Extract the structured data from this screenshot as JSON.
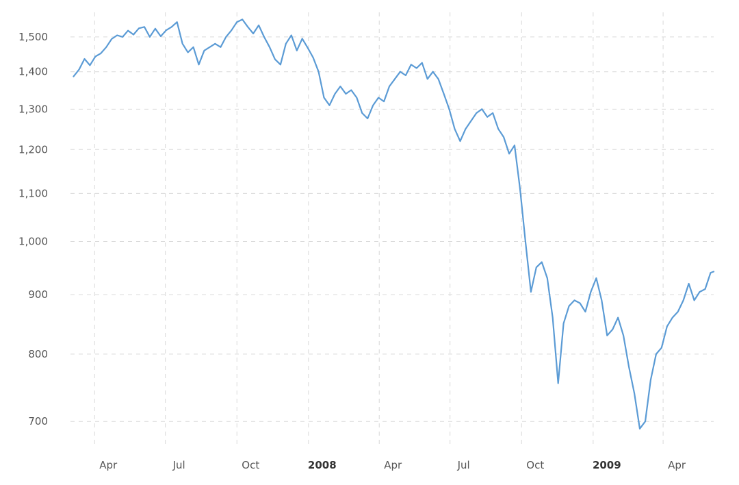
{
  "chart_data": {
    "type": "line",
    "title": "",
    "xlabel": "",
    "ylabel": "",
    "y_scale": "log",
    "ylim": [
      665,
      1575
    ],
    "xlim": [
      "2007-03-01",
      "2009-06-05"
    ],
    "grid": true,
    "legend": "none",
    "line_color": "#5b9bd5",
    "y_ticks": [
      {
        "value": 700,
        "label": "700"
      },
      {
        "value": 800,
        "label": "800"
      },
      {
        "value": 900,
        "label": "900"
      },
      {
        "value": 1000,
        "label": "1,000"
      },
      {
        "value": 1100,
        "label": "1,100"
      },
      {
        "value": 1200,
        "label": "1,200"
      },
      {
        "value": 1300,
        "label": "1,300"
      },
      {
        "value": 1400,
        "label": "1,400"
      },
      {
        "value": 1500,
        "label": "1,500"
      }
    ],
    "x_ticks": [
      {
        "date": "2007-04-01",
        "label": "Apr",
        "bold": false
      },
      {
        "date": "2007-07-01",
        "label": "Jul",
        "bold": false
      },
      {
        "date": "2007-10-01",
        "label": "Oct",
        "bold": false
      },
      {
        "date": "2008-01-01",
        "label": "2008",
        "bold": true
      },
      {
        "date": "2008-04-01",
        "label": "Apr",
        "bold": false
      },
      {
        "date": "2008-07-01",
        "label": "Jul",
        "bold": false
      },
      {
        "date": "2008-10-01",
        "label": "Oct",
        "bold": false
      },
      {
        "date": "2009-01-01",
        "label": "2009",
        "bold": true
      },
      {
        "date": "2009-04-01",
        "label": "Apr",
        "bold": false
      }
    ],
    "series": [
      {
        "points": [
          [
            "2007-03-05",
            1387
          ],
          [
            "2007-03-12",
            1406
          ],
          [
            "2007-03-19",
            1436
          ],
          [
            "2007-03-26",
            1418
          ],
          [
            "2007-04-02",
            1443
          ],
          [
            "2007-04-09",
            1452
          ],
          [
            "2007-04-16",
            1470
          ],
          [
            "2007-04-23",
            1494
          ],
          [
            "2007-04-30",
            1505
          ],
          [
            "2007-05-07",
            1500
          ],
          [
            "2007-05-14",
            1519
          ],
          [
            "2007-05-21",
            1507
          ],
          [
            "2007-05-28",
            1526
          ],
          [
            "2007-06-04",
            1530
          ],
          [
            "2007-06-11",
            1500
          ],
          [
            "2007-06-18",
            1525
          ],
          [
            "2007-06-25",
            1502
          ],
          [
            "2007-07-02",
            1520
          ],
          [
            "2007-07-09",
            1530
          ],
          [
            "2007-07-16",
            1545
          ],
          [
            "2007-07-23",
            1480
          ],
          [
            "2007-07-30",
            1455
          ],
          [
            "2007-08-06",
            1470
          ],
          [
            "2007-08-13",
            1420
          ],
          [
            "2007-08-20",
            1460
          ],
          [
            "2007-08-27",
            1470
          ],
          [
            "2007-09-03",
            1480
          ],
          [
            "2007-09-10",
            1470
          ],
          [
            "2007-09-17",
            1500
          ],
          [
            "2007-09-24",
            1520
          ],
          [
            "2007-10-01",
            1545
          ],
          [
            "2007-10-08",
            1553
          ],
          [
            "2007-10-15",
            1530
          ],
          [
            "2007-10-22",
            1510
          ],
          [
            "2007-10-29",
            1535
          ],
          [
            "2007-11-05",
            1500
          ],
          [
            "2007-11-12",
            1470
          ],
          [
            "2007-11-19",
            1435
          ],
          [
            "2007-11-26",
            1420
          ],
          [
            "2007-12-03",
            1480
          ],
          [
            "2007-12-10",
            1505
          ],
          [
            "2007-12-17",
            1460
          ],
          [
            "2007-12-24",
            1495
          ],
          [
            "2007-12-31",
            1468
          ],
          [
            "2008-01-07",
            1440
          ],
          [
            "2008-01-14",
            1400
          ],
          [
            "2008-01-21",
            1330
          ],
          [
            "2008-01-28",
            1310
          ],
          [
            "2008-02-04",
            1340
          ],
          [
            "2008-02-11",
            1360
          ],
          [
            "2008-02-18",
            1340
          ],
          [
            "2008-02-25",
            1350
          ],
          [
            "2008-03-03",
            1330
          ],
          [
            "2008-03-10",
            1290
          ],
          [
            "2008-03-17",
            1276
          ],
          [
            "2008-03-24",
            1310
          ],
          [
            "2008-03-31",
            1330
          ],
          [
            "2008-04-07",
            1320
          ],
          [
            "2008-04-14",
            1360
          ],
          [
            "2008-04-21",
            1380
          ],
          [
            "2008-04-28",
            1400
          ],
          [
            "2008-05-05",
            1390
          ],
          [
            "2008-05-12",
            1420
          ],
          [
            "2008-05-19",
            1410
          ],
          [
            "2008-05-26",
            1425
          ],
          [
            "2008-06-02",
            1380
          ],
          [
            "2008-06-09",
            1400
          ],
          [
            "2008-06-16",
            1380
          ],
          [
            "2008-06-23",
            1340
          ],
          [
            "2008-06-30",
            1300
          ],
          [
            "2008-07-07",
            1250
          ],
          [
            "2008-07-14",
            1220
          ],
          [
            "2008-07-21",
            1250
          ],
          [
            "2008-07-28",
            1270
          ],
          [
            "2008-08-04",
            1290
          ],
          [
            "2008-08-11",
            1300
          ],
          [
            "2008-08-18",
            1280
          ],
          [
            "2008-08-25",
            1290
          ],
          [
            "2008-09-01",
            1250
          ],
          [
            "2008-09-08",
            1230
          ],
          [
            "2008-09-15",
            1190
          ],
          [
            "2008-09-22",
            1210
          ],
          [
            "2008-09-29",
            1110
          ],
          [
            "2008-10-06",
            1000
          ],
          [
            "2008-10-13",
            905
          ],
          [
            "2008-10-20",
            950
          ],
          [
            "2008-10-27",
            960
          ],
          [
            "2008-11-03",
            930
          ],
          [
            "2008-11-10",
            860
          ],
          [
            "2008-11-17",
            755
          ],
          [
            "2008-11-24",
            850
          ],
          [
            "2008-12-01",
            880
          ],
          [
            "2008-12-08",
            890
          ],
          [
            "2008-12-15",
            885
          ],
          [
            "2008-12-22",
            870
          ],
          [
            "2008-12-29",
            905
          ],
          [
            "2009-01-05",
            930
          ],
          [
            "2009-01-12",
            890
          ],
          [
            "2009-01-19",
            830
          ],
          [
            "2009-01-26",
            840
          ],
          [
            "2009-02-02",
            860
          ],
          [
            "2009-02-09",
            830
          ],
          [
            "2009-02-16",
            780
          ],
          [
            "2009-02-23",
            740
          ],
          [
            "2009-03-02",
            690
          ],
          [
            "2009-03-09",
            700
          ],
          [
            "2009-03-16",
            760
          ],
          [
            "2009-03-23",
            800
          ],
          [
            "2009-03-30",
            810
          ],
          [
            "2009-04-06",
            845
          ],
          [
            "2009-04-13",
            860
          ],
          [
            "2009-04-20",
            870
          ],
          [
            "2009-04-27",
            890
          ],
          [
            "2009-05-04",
            920
          ],
          [
            "2009-05-11",
            890
          ],
          [
            "2009-05-18",
            905
          ],
          [
            "2009-05-25",
            910
          ],
          [
            "2009-06-01",
            940
          ],
          [
            "2009-06-05",
            942
          ]
        ]
      }
    ]
  }
}
